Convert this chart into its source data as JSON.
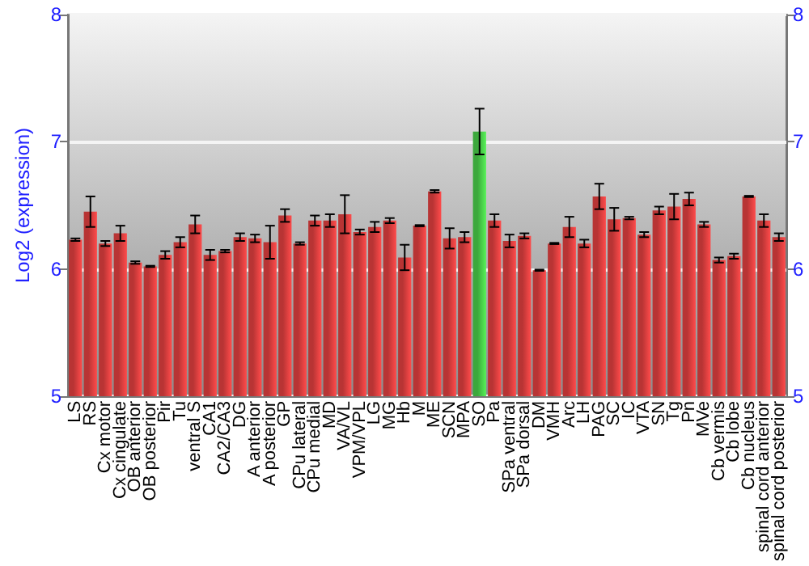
{
  "chart_data": {
    "type": "bar",
    "ylabel": "Log2 (expression)",
    "categories": [
      "LS",
      "RS",
      "Cx motor",
      "Cx cingulate",
      "OB anterior",
      "OB posterior",
      "Pir",
      "Tu",
      "ventral S",
      "CA1",
      "CA2/CA3",
      "DG",
      "A anterior",
      "A posterior",
      "GP",
      "CPu lateral",
      "CPu medial",
      "MD",
      "VA/VL",
      "VPM/VPL",
      "LG",
      "MG",
      "Hb",
      "M",
      "ME",
      "SCN",
      "MPA",
      "SO",
      "Pa",
      "SPa ventral",
      "SPa dorsal",
      "DM",
      "VMH",
      "Arc",
      "LH",
      "PAG",
      "SC",
      "IC",
      "VTA",
      "SN",
      "Tg",
      "Pn",
      "MVe",
      "Cb vermis",
      "Cb lobe",
      "Cb nucleus",
      "spinal cord anterior",
      "spinal cord posterior"
    ],
    "values": [
      6.23,
      6.45,
      6.2,
      6.28,
      6.05,
      6.02,
      6.11,
      6.21,
      6.35,
      6.11,
      6.14,
      6.25,
      6.24,
      6.21,
      6.42,
      6.2,
      6.38,
      6.38,
      6.43,
      6.29,
      6.33,
      6.38,
      6.09,
      6.34,
      6.61,
      6.24,
      6.25,
      7.08,
      6.38,
      6.22,
      6.26,
      5.99,
      6.2,
      6.33,
      6.2,
      6.57,
      6.39,
      6.4,
      6.27,
      6.46,
      6.49,
      6.55,
      6.35,
      6.07,
      6.1,
      6.57,
      6.38,
      6.25
    ],
    "errors": [
      0.01,
      0.12,
      0.02,
      0.06,
      0.01,
      0.005,
      0.03,
      0.04,
      0.07,
      0.04,
      0.01,
      0.03,
      0.03,
      0.13,
      0.05,
      0.01,
      0.04,
      0.05,
      0.15,
      0.02,
      0.04,
      0.02,
      0.1,
      0.005,
      0.01,
      0.08,
      0.04,
      0.18,
      0.05,
      0.05,
      0.02,
      0.005,
      0.005,
      0.08,
      0.03,
      0.1,
      0.09,
      0.01,
      0.02,
      0.03,
      0.1,
      0.05,
      0.02,
      0.02,
      0.02,
      0.005,
      0.05,
      0.03
    ],
    "colors": [
      "#b83434",
      "#b83434",
      "#b83434",
      "#b83434",
      "#b83434",
      "#b83434",
      "#b83434",
      "#b83434",
      "#b83434",
      "#b83434",
      "#b83434",
      "#b83434",
      "#b83434",
      "#b83434",
      "#b83434",
      "#b83434",
      "#b83434",
      "#b83434",
      "#b83434",
      "#b83434",
      "#b83434",
      "#b83434",
      "#b83434",
      "#b83434",
      "#b83434",
      "#b83434",
      "#b83434",
      "#3ca83c",
      "#b83434",
      "#b83434",
      "#b83434",
      "#b83434",
      "#b83434",
      "#b83434",
      "#b83434",
      "#b83434",
      "#b83434",
      "#b83434",
      "#b83434",
      "#b83434",
      "#b83434",
      "#b83434",
      "#b83434",
      "#b83434",
      "#b83434",
      "#b83434",
      "#b83434",
      "#b83434"
    ],
    "ylim": [
      5,
      8
    ],
    "yticks": [
      5,
      6,
      7,
      8
    ],
    "y2lim": [
      5,
      8
    ],
    "y2ticks": [
      5,
      6,
      7,
      8
    ],
    "grid": "y"
  }
}
